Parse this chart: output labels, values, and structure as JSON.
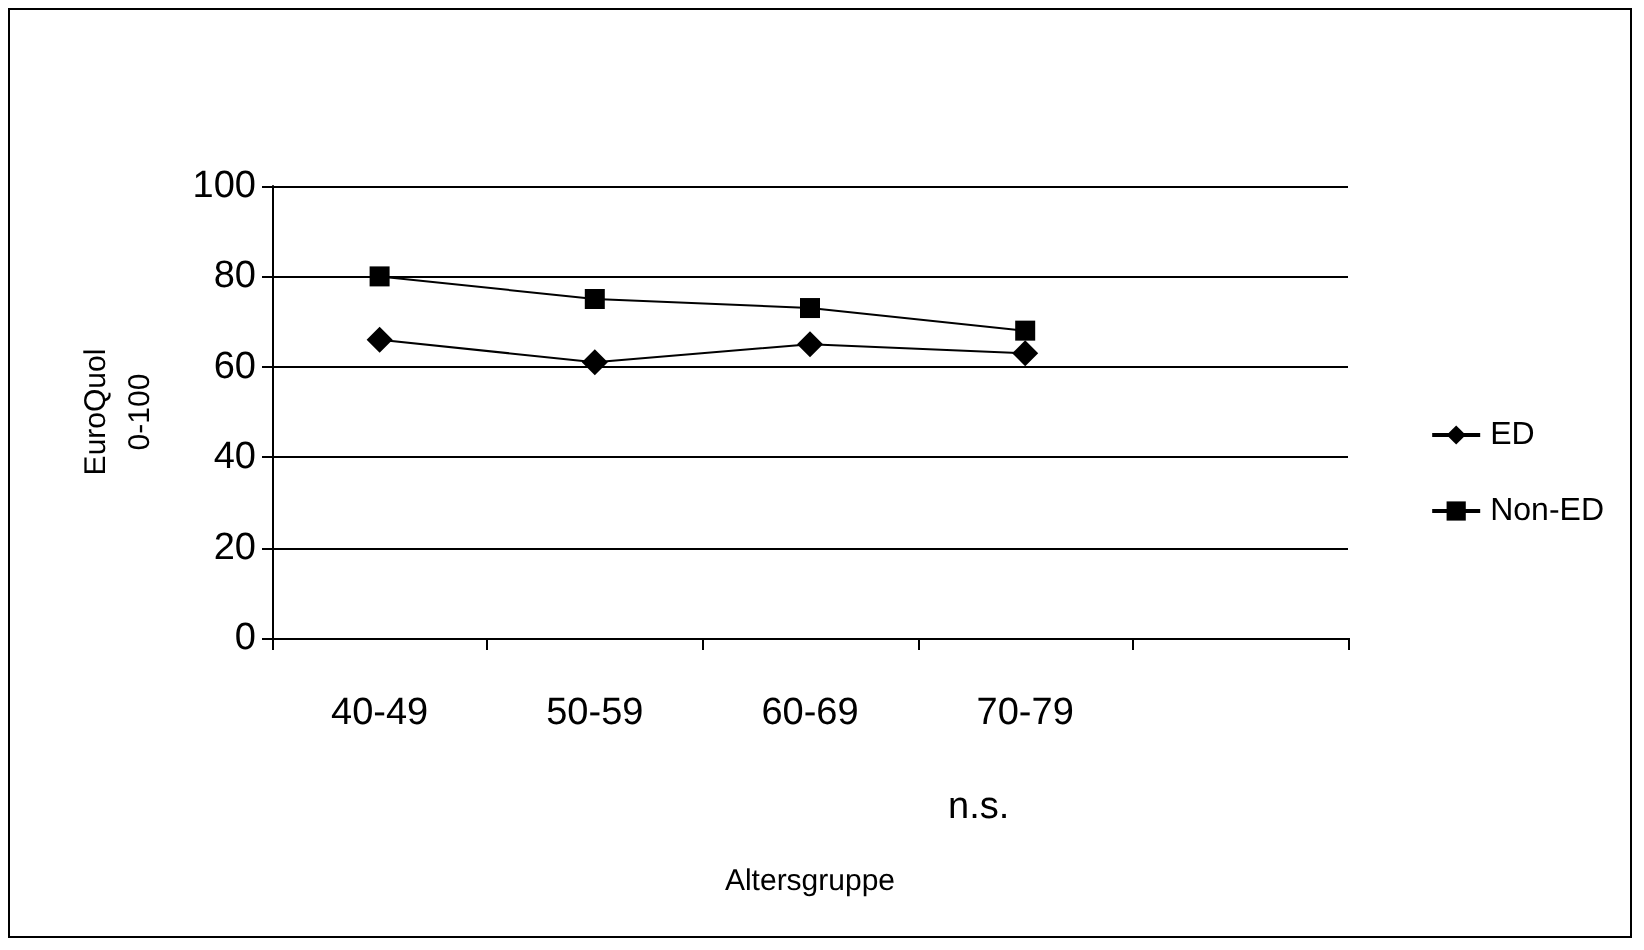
{
  "chart_data": {
    "type": "line",
    "xlabel": "Altersgruppe",
    "ylabel": "EuroQuol\n0-100",
    "categories": [
      "40-49",
      "50-59",
      "60-69",
      "70-79",
      null
    ],
    "series": [
      {
        "name": "ED",
        "color": "#000000",
        "marker": "diamond",
        "values": [
          66,
          61,
          65,
          63,
          null
        ]
      },
      {
        "name": "Non-ED",
        "color": "#000000",
        "marker": "square",
        "values": [
          80,
          75,
          73,
          68,
          null
        ]
      }
    ],
    "ylim": [
      0,
      100
    ],
    "yticks": [
      0,
      20,
      40,
      60,
      80,
      100
    ],
    "grid": "y",
    "legend": "right",
    "line_style": "solid",
    "annotations": [
      "n.s."
    ]
  }
}
